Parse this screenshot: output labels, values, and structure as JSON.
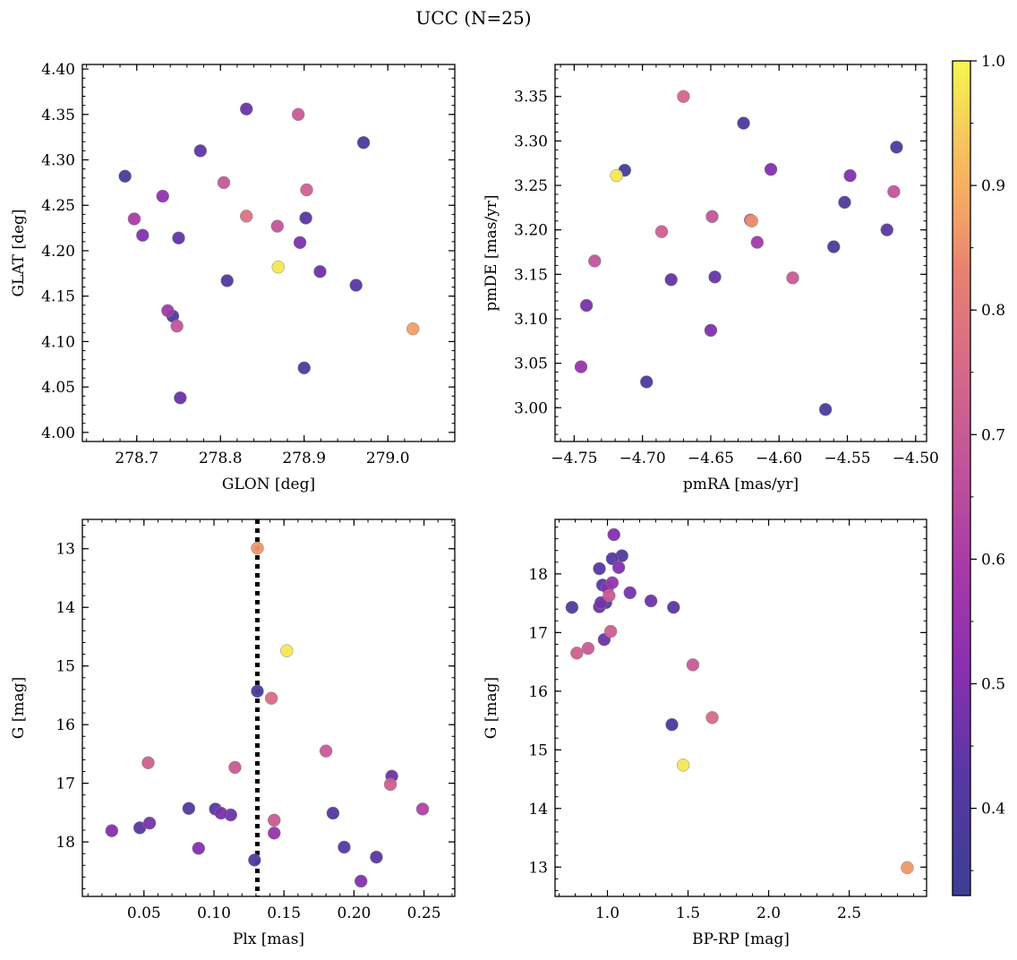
{
  "figure": {
    "title": "UCC (N=25)"
  },
  "colorbar": {
    "colormap": "plasma",
    "vmin": 0.33,
    "vmax": 1.0,
    "ticks": [
      0.4,
      0.5,
      0.6,
      0.7,
      0.8,
      0.9,
      1.0
    ],
    "tick_labels": [
      "0.4",
      "0.5",
      "0.6",
      "0.7",
      "0.8",
      "0.9",
      "1.0"
    ]
  },
  "chart_data": [
    {
      "type": "scatter",
      "xlabel": "GLON [deg]",
      "ylabel": "GLAT [deg]",
      "xlim": [
        278.635,
        279.08
      ],
      "ylim": [
        3.99,
        4.405
      ],
      "xticks": [
        278.7,
        278.8,
        278.9,
        279.0
      ],
      "xtick_labels": [
        "278.7",
        "278.8",
        "278.9",
        "279.0"
      ],
      "yticks": [
        4.0,
        4.05,
        4.1,
        4.15,
        4.2,
        4.25,
        4.3,
        4.35,
        4.4
      ],
      "ytick_labels": [
        "4.00",
        "4.05",
        "4.10",
        "4.15",
        "4.20",
        "4.25",
        "4.30",
        "4.35",
        "4.40"
      ],
      "invert_y": false,
      "points": [
        {
          "x": 278.686,
          "y": 4.282,
          "c": 0.36
        },
        {
          "x": 278.697,
          "y": 4.235,
          "c": 0.6
        },
        {
          "x": 278.707,
          "y": 4.217,
          "c": 0.5
        },
        {
          "x": 278.731,
          "y": 4.26,
          "c": 0.53
        },
        {
          "x": 278.737,
          "y": 4.134,
          "c": 0.58
        },
        {
          "x": 278.743,
          "y": 4.128,
          "c": 0.38
        },
        {
          "x": 278.748,
          "y": 4.117,
          "c": 0.68
        },
        {
          "x": 278.75,
          "y": 4.214,
          "c": 0.44
        },
        {
          "x": 278.752,
          "y": 4.038,
          "c": 0.45
        },
        {
          "x": 278.776,
          "y": 4.31,
          "c": 0.44
        },
        {
          "x": 278.804,
          "y": 4.275,
          "c": 0.69
        },
        {
          "x": 278.808,
          "y": 4.167,
          "c": 0.4
        },
        {
          "x": 278.831,
          "y": 4.356,
          "c": 0.46
        },
        {
          "x": 278.831,
          "y": 4.238,
          "c": 0.78
        },
        {
          "x": 278.868,
          "y": 4.227,
          "c": 0.68
        },
        {
          "x": 278.869,
          "y": 4.182,
          "c": 0.98
        },
        {
          "x": 278.893,
          "y": 4.35,
          "c": 0.7
        },
        {
          "x": 278.895,
          "y": 4.209,
          "c": 0.49
        },
        {
          "x": 278.9,
          "y": 4.071,
          "c": 0.38
        },
        {
          "x": 278.902,
          "y": 4.236,
          "c": 0.42
        },
        {
          "x": 278.903,
          "y": 4.267,
          "c": 0.72
        },
        {
          "x": 278.919,
          "y": 4.177,
          "c": 0.46
        },
        {
          "x": 278.962,
          "y": 4.162,
          "c": 0.42
        },
        {
          "x": 278.971,
          "y": 4.319,
          "c": 0.38
        },
        {
          "x": 279.03,
          "y": 4.114,
          "c": 0.87
        }
      ]
    },
    {
      "type": "scatter",
      "xlabel": "pmRA [mas/yr]",
      "ylabel": "pmDE [mas/yr]",
      "xlim": [
        -4.764,
        -4.492
      ],
      "ylim": [
        2.962,
        3.386
      ],
      "xticks": [
        -4.75,
        -4.7,
        -4.65,
        -4.6,
        -4.55,
        -4.5
      ],
      "xtick_labels": [
        "−4.75",
        "−4.70",
        "−4.65",
        "−4.60",
        "−4.55",
        "−4.50"
      ],
      "yticks": [
        3.0,
        3.05,
        3.1,
        3.15,
        3.2,
        3.25,
        3.3,
        3.35
      ],
      "ytick_labels": [
        "3.00",
        "3.05",
        "3.10",
        "3.15",
        "3.20",
        "3.25",
        "3.30",
        "3.35"
      ],
      "invert_y": false,
      "points": [
        {
          "x": -4.745,
          "y": 3.046,
          "c": 0.55
        },
        {
          "x": -4.741,
          "y": 3.115,
          "c": 0.48
        },
        {
          "x": -4.735,
          "y": 3.165,
          "c": 0.68
        },
        {
          "x": -4.719,
          "y": 3.261,
          "c": 0.98
        },
        {
          "x": -4.713,
          "y": 3.267,
          "c": 0.36
        },
        {
          "x": -4.697,
          "y": 3.029,
          "c": 0.38
        },
        {
          "x": -4.686,
          "y": 3.198,
          "c": 0.72
        },
        {
          "x": -4.679,
          "y": 3.144,
          "c": 0.44
        },
        {
          "x": -4.67,
          "y": 3.35,
          "c": 0.74
        },
        {
          "x": -4.65,
          "y": 3.087,
          "c": 0.5
        },
        {
          "x": -4.649,
          "y": 3.215,
          "c": 0.68
        },
        {
          "x": -4.647,
          "y": 3.147,
          "c": 0.45
        },
        {
          "x": -4.626,
          "y": 3.32,
          "c": 0.38
        },
        {
          "x": -4.621,
          "y": 3.211,
          "c": 0.7
        },
        {
          "x": -4.62,
          "y": 3.21,
          "c": 0.85
        },
        {
          "x": -4.616,
          "y": 3.186,
          "c": 0.58
        },
        {
          "x": -4.606,
          "y": 3.268,
          "c": 0.5
        },
        {
          "x": -4.59,
          "y": 3.146,
          "c": 0.7
        },
        {
          "x": -4.566,
          "y": 2.998,
          "c": 0.38
        },
        {
          "x": -4.56,
          "y": 3.181,
          "c": 0.38
        },
        {
          "x": -4.552,
          "y": 3.231,
          "c": 0.4
        },
        {
          "x": -4.548,
          "y": 3.261,
          "c": 0.5
        },
        {
          "x": -4.521,
          "y": 3.2,
          "c": 0.42
        },
        {
          "x": -4.516,
          "y": 3.243,
          "c": 0.68
        },
        {
          "x": -4.514,
          "y": 3.293,
          "c": 0.38
        }
      ]
    },
    {
      "type": "scatter",
      "xlabel": "Plx [mas]",
      "ylabel": "G [mag]",
      "xlim": [
        0.006,
        0.272
      ],
      "ylim": [
        12.5,
        18.93
      ],
      "xticks": [
        0.05,
        0.1,
        0.15,
        0.2,
        0.25
      ],
      "xtick_labels": [
        "0.05",
        "0.10",
        "0.15",
        "0.20",
        "0.25"
      ],
      "yticks": [
        13,
        14,
        15,
        16,
        17,
        18
      ],
      "ytick_labels": [
        "13",
        "14",
        "15",
        "16",
        "17",
        "18"
      ],
      "invert_y": true,
      "vline": 0.131,
      "points": [
        {
          "x": 0.027,
          "y": 17.81,
          "c": 0.5
        },
        {
          "x": 0.047,
          "y": 17.76,
          "c": 0.42
        },
        {
          "x": 0.053,
          "y": 16.65,
          "c": 0.72
        },
        {
          "x": 0.054,
          "y": 17.68,
          "c": 0.48
        },
        {
          "x": 0.082,
          "y": 17.43,
          "c": 0.4
        },
        {
          "x": 0.089,
          "y": 18.11,
          "c": 0.5
        },
        {
          "x": 0.101,
          "y": 17.44,
          "c": 0.42
        },
        {
          "x": 0.105,
          "y": 17.51,
          "c": 0.48
        },
        {
          "x": 0.112,
          "y": 17.54,
          "c": 0.46
        },
        {
          "x": 0.115,
          "y": 16.73,
          "c": 0.7
        },
        {
          "x": 0.129,
          "y": 18.31,
          "c": 0.4
        },
        {
          "x": 0.131,
          "y": 12.99,
          "c": 0.86
        },
        {
          "x": 0.131,
          "y": 15.43,
          "c": 0.38
        },
        {
          "x": 0.141,
          "y": 15.55,
          "c": 0.76
        },
        {
          "x": 0.143,
          "y": 17.63,
          "c": 0.7
        },
        {
          "x": 0.143,
          "y": 17.85,
          "c": 0.55
        },
        {
          "x": 0.152,
          "y": 14.74,
          "c": 0.98
        },
        {
          "x": 0.18,
          "y": 16.45,
          "c": 0.7
        },
        {
          "x": 0.185,
          "y": 17.51,
          "c": 0.4
        },
        {
          "x": 0.193,
          "y": 18.09,
          "c": 0.42
        },
        {
          "x": 0.205,
          "y": 18.67,
          "c": 0.5
        },
        {
          "x": 0.216,
          "y": 18.26,
          "c": 0.42
        },
        {
          "x": 0.226,
          "y": 17.02,
          "c": 0.72
        },
        {
          "x": 0.227,
          "y": 16.88,
          "c": 0.46
        },
        {
          "x": 0.249,
          "y": 17.44,
          "c": 0.62
        }
      ]
    },
    {
      "type": "scatter",
      "xlabel": "BP-RP [mag]",
      "ylabel": "G [mag]",
      "xlim": [
        0.675,
        2.98
      ],
      "ylim": [
        12.5,
        18.93
      ],
      "xticks": [
        1.0,
        1.5,
        2.0,
        2.5
      ],
      "xtick_labels": [
        "1.0",
        "1.5",
        "2.0",
        "2.5"
      ],
      "yticks": [
        13,
        14,
        15,
        16,
        17,
        18
      ],
      "ytick_labels": [
        "13",
        "14",
        "15",
        "16",
        "17",
        "18"
      ],
      "invert_y": false,
      "points": [
        {
          "x": 0.78,
          "y": 17.43,
          "c": 0.4
        },
        {
          "x": 0.81,
          "y": 16.65,
          "c": 0.72
        },
        {
          "x": 0.88,
          "y": 16.73,
          "c": 0.7
        },
        {
          "x": 0.95,
          "y": 18.09,
          "c": 0.42
        },
        {
          "x": 0.95,
          "y": 17.44,
          "c": 0.46
        },
        {
          "x": 0.96,
          "y": 17.51,
          "c": 0.48
        },
        {
          "x": 0.97,
          "y": 17.81,
          "c": 0.42
        },
        {
          "x": 0.98,
          "y": 16.88,
          "c": 0.46
        },
        {
          "x": 0.99,
          "y": 17.51,
          "c": 0.4
        },
        {
          "x": 1.0,
          "y": 17.76,
          "c": 0.5
        },
        {
          "x": 1.01,
          "y": 17.63,
          "c": 0.7
        },
        {
          "x": 1.02,
          "y": 17.02,
          "c": 0.72
        },
        {
          "x": 1.03,
          "y": 17.85,
          "c": 0.55
        },
        {
          "x": 1.03,
          "y": 18.26,
          "c": 0.42
        },
        {
          "x": 1.04,
          "y": 18.67,
          "c": 0.5
        },
        {
          "x": 1.07,
          "y": 18.11,
          "c": 0.5
        },
        {
          "x": 1.09,
          "y": 18.31,
          "c": 0.4
        },
        {
          "x": 1.14,
          "y": 17.68,
          "c": 0.48
        },
        {
          "x": 1.27,
          "y": 17.54,
          "c": 0.46
        },
        {
          "x": 1.4,
          "y": 15.43,
          "c": 0.38
        },
        {
          "x": 1.41,
          "y": 17.43,
          "c": 0.42
        },
        {
          "x": 1.47,
          "y": 14.74,
          "c": 0.98
        },
        {
          "x": 1.53,
          "y": 16.45,
          "c": 0.7
        },
        {
          "x": 1.65,
          "y": 15.55,
          "c": 0.76
        },
        {
          "x": 2.86,
          "y": 12.99,
          "c": 0.86
        }
      ]
    }
  ]
}
